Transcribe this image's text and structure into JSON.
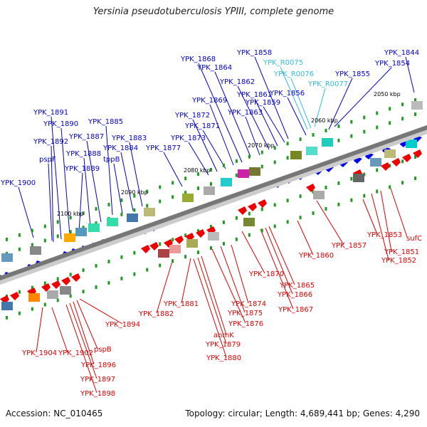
{
  "title": "Yersinia pseudotuberculosis YPIII, complete genome",
  "footer": {
    "accession": "Accession: NC_010465",
    "summary": "Topology: circular; Length: 4,689,441 bp; Genes: 4,290"
  },
  "colors": {
    "forward_label": "#0000cc",
    "reverse_label": "#dd0000",
    "rna_label": "#33bbdd",
    "forward_gene": "#0000ee",
    "reverse_gene": "#ee0000",
    "backbone": "#777777"
  },
  "ticks": [
    "2050 kbp",
    "2060 kbp",
    "2070 kbp",
    "2080 kbp",
    "2090 kbp",
    "2100 kbp"
  ],
  "forward_labels": [
    "YPK_1844",
    "YPK_1854",
    "YPK_1855",
    "YPK_1856",
    "YPK_1858",
    "YPK_1859",
    "YPK_1861",
    "YPK_1862",
    "YPK_1863",
    "YPK_1864",
    "YPK_1868",
    "YPK_1869",
    "YPK_1871",
    "YPK_1872",
    "YPK_1873",
    "YPK_1877",
    "YPK_1883",
    "YPK_1884",
    "tppB",
    "YPK_1885",
    "YPK_1887",
    "YPK_1888",
    "YPK_1889",
    "YPK_1890",
    "YPK_1891",
    "YPK_1892",
    "pspF",
    "YPK_1900"
  ],
  "rna_labels": [
    "YPK_R0075",
    "YPK_R0076",
    "YPK_R0077"
  ],
  "reverse_labels": [
    "sufC",
    "YPK_1851",
    "YPK_1852",
    "YPK_1853",
    "YPK_1857",
    "YPK_1860",
    "YPK_1865",
    "YPK_1866",
    "YPK_1867",
    "YPK_1870",
    "YPK_1874",
    "YPK_1875",
    "YPK_1876",
    "anmK",
    "YPK_1879",
    "YPK_1880",
    "YPK_1881",
    "YPK_1882",
    "YPK_1894",
    "pspB",
    "YPK_1896",
    "YPK_1897",
    "YPK_1898",
    "YPK_1902",
    "YPK_1904"
  ]
}
